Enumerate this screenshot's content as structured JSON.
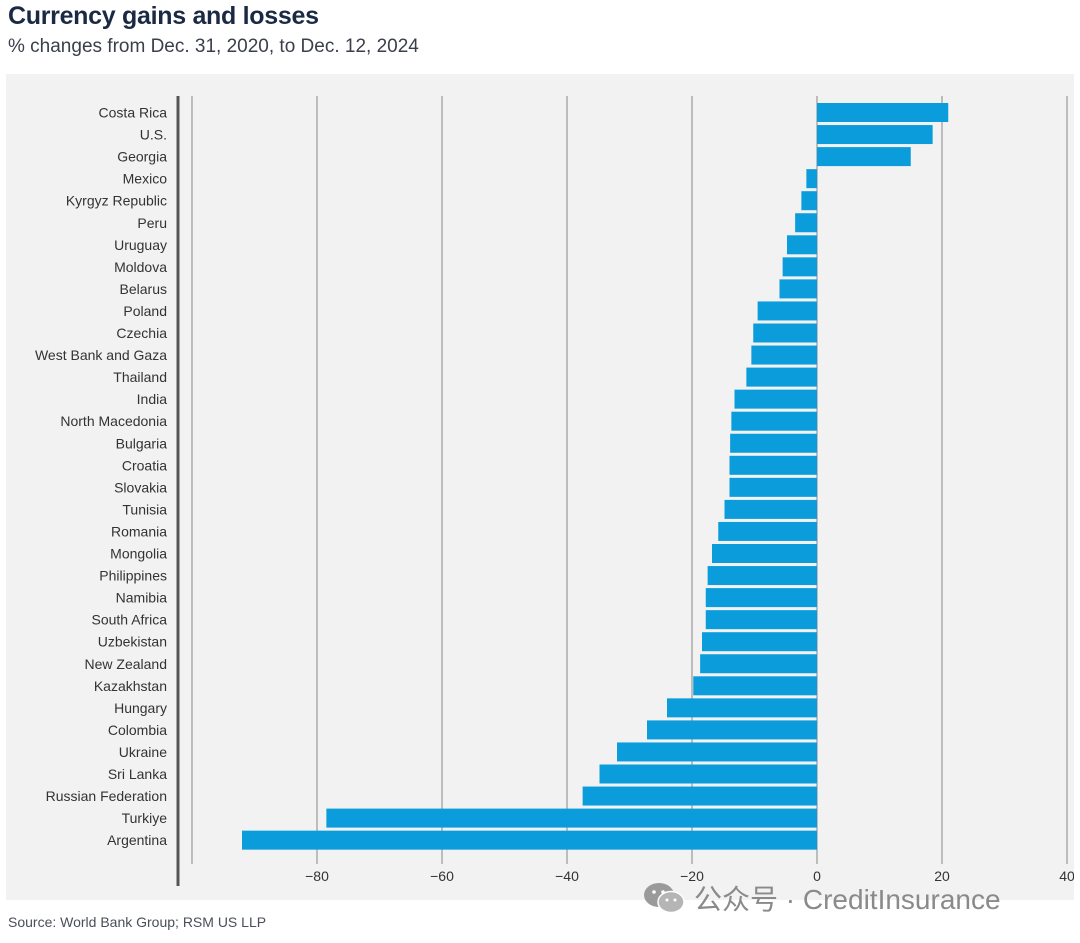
{
  "title": "Currency gains and losses",
  "subtitle": "% changes from Dec. 31, 2020, to Dec. 12, 2024",
  "source": "Source: World Bank Group; RSM US LLP",
  "watermark": {
    "text": "公众号 · CreditInsurance",
    "icon": "wechat-icon"
  },
  "colors": {
    "bar": "#0b9ddb",
    "grid": "#9a9a9a",
    "axis": "#555555",
    "background": "#f2f2f2"
  },
  "chart_data": {
    "type": "bar",
    "orientation": "horizontal",
    "categories": [
      "Costa Rica",
      "U.S.",
      "Georgia",
      "Mexico",
      "Kyrgyz Republic",
      "Peru",
      "Uruguay",
      "Moldova",
      "Belarus",
      "Poland",
      "Czechia",
      "West Bank and Gaza",
      "Thailand",
      "India",
      "North Macedonia",
      "Bulgaria",
      "Croatia",
      "Slovakia",
      "Tunisia",
      "Romania",
      "Mongolia",
      "Philippines",
      "Namibia",
      "South Africa",
      "Uzbekistan",
      "New Zealand",
      "Kazakhstan",
      "Hungary",
      "Colombia",
      "Ukraine",
      "Sri Lanka",
      "Russian Federation",
      "Turkiye",
      "Argentina"
    ],
    "values": [
      21,
      18.5,
      15,
      -1.7,
      -2.5,
      -3.5,
      -4.8,
      -5.5,
      -6,
      -9.5,
      -10.2,
      -10.5,
      -11.3,
      -13.2,
      -13.7,
      -13.9,
      -14,
      -14,
      -14.8,
      -15.8,
      -16.8,
      -17.5,
      -17.8,
      -17.8,
      -18.4,
      -18.7,
      -19.8,
      -24,
      -27.2,
      -32,
      -34.8,
      -37.5,
      -78.5,
      -92
    ],
    "xlim": [
      -100,
      40
    ],
    "xticks": [
      -80,
      -60,
      -40,
      -20,
      0,
      20,
      40
    ],
    "xtick_labels": [
      "−80",
      "−60",
      "−40",
      "−20",
      "0",
      "20",
      "40"
    ],
    "grid": true,
    "xlabel": "",
    "ylabel": ""
  }
}
